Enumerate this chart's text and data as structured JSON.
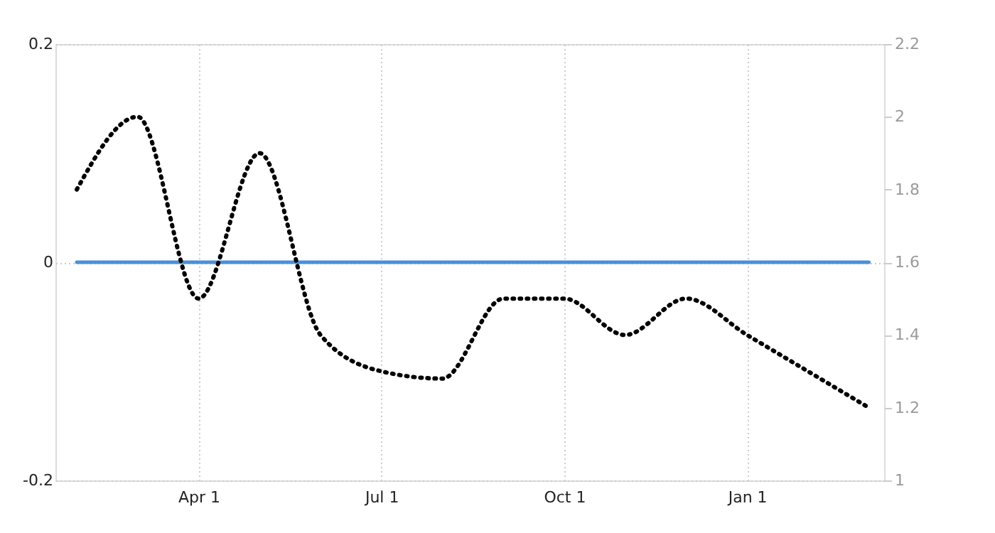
{
  "chart_data": {
    "type": "line",
    "categories": [
      null,
      null,
      "Apr 1",
      null,
      null,
      "Jul 1",
      null,
      null,
      "Oct 1",
      null,
      null,
      "Jan 1",
      null,
      null
    ],
    "ylim": [
      -0.2,
      0.2
    ],
    "yticks": [
      -0.2,
      0,
      0.2
    ],
    "y2lim": [
      1,
      2.2
    ],
    "y2ticks": [
      1,
      1.2,
      1.4,
      1.6,
      1.8,
      2,
      2.2
    ],
    "grid": true,
    "series": [
      {
        "color": "#4a90d9",
        "line_style": "solid",
        "values": [
          0,
          0,
          0,
          0,
          0,
          0,
          0,
          0,
          0,
          0,
          0,
          0,
          0,
          0
        ]
      },
      {
        "color": "#000000",
        "line_style": "dotted",
        "axis": "y2",
        "values": [
          1.8,
          2.0,
          1.5,
          1.9,
          1.4,
          1.3,
          1.28,
          1.5,
          1.5,
          1.4,
          1.5,
          1.4,
          1.3,
          1.2
        ]
      }
    ]
  }
}
